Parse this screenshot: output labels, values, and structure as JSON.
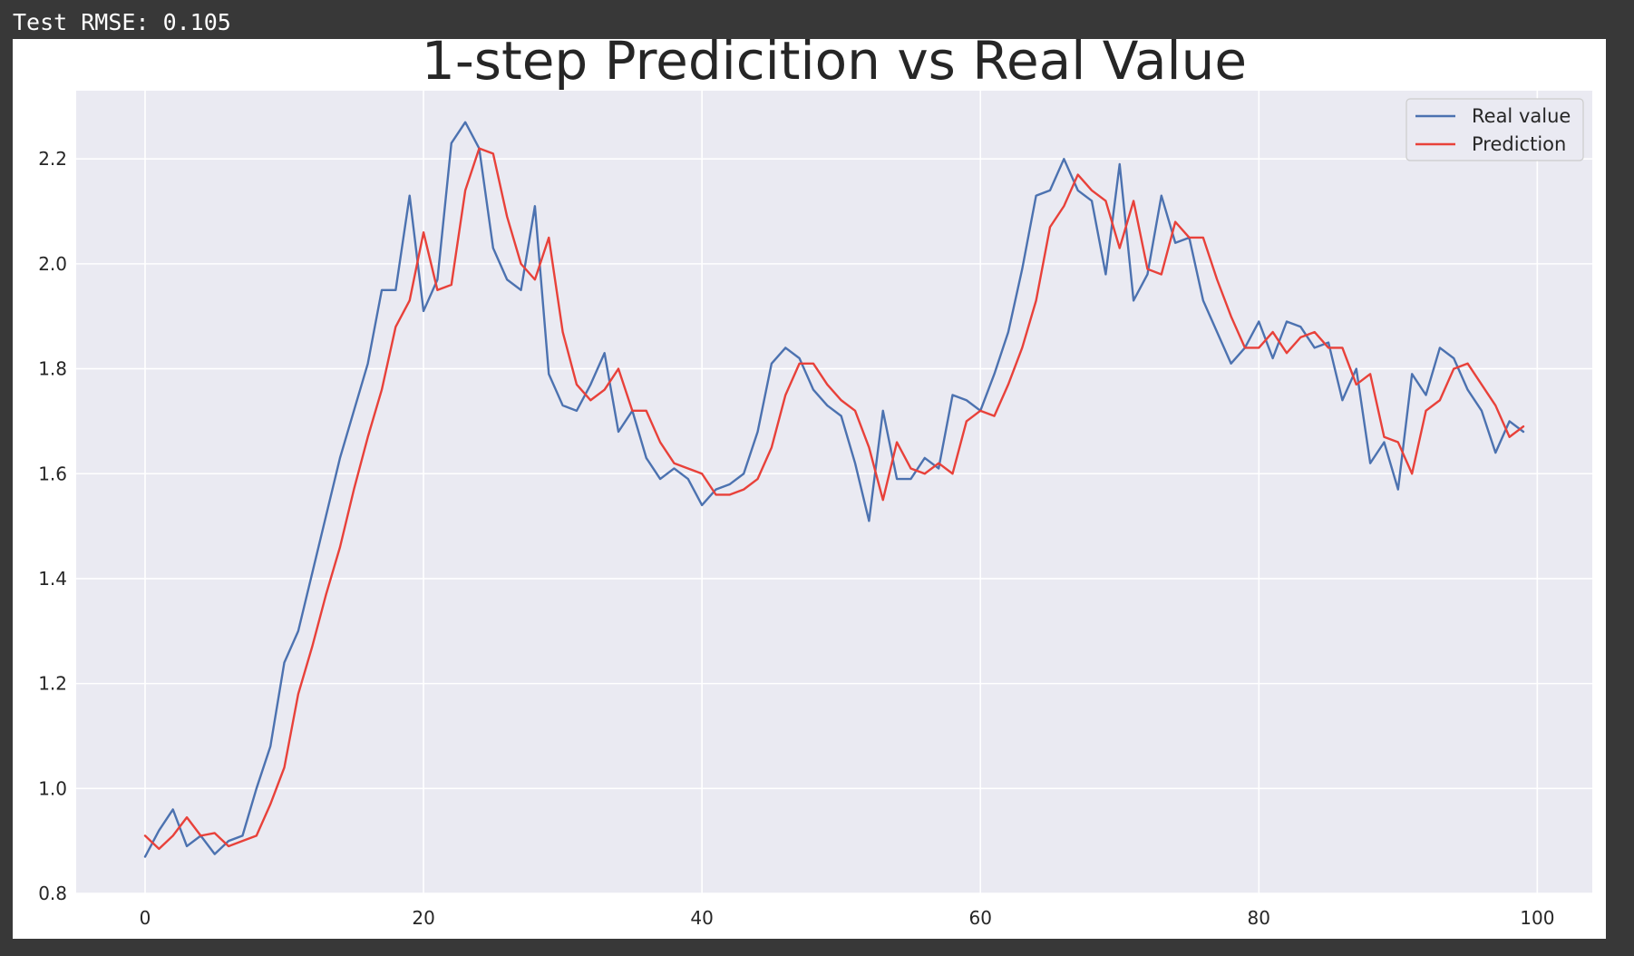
{
  "console": {
    "output_text": "Test RMSE: 0.105"
  },
  "colors": {
    "page_background": "#383838",
    "figure_background": "#ffffff",
    "axes_background": "#eaeaf2",
    "grid": "#ffffff",
    "text": "#262626"
  },
  "chart_data": {
    "type": "line",
    "title": "1-step Predicition vs Real Value",
    "xlabel": "",
    "ylabel": "",
    "xlim": [
      -4.95,
      103.95
    ],
    "ylim": [
      0.8,
      2.33
    ],
    "xticks": [
      0,
      20,
      40,
      60,
      80,
      100
    ],
    "yticks": [
      0.8,
      1.0,
      1.2,
      1.4,
      1.6,
      1.8,
      2.0,
      2.2
    ],
    "ytick_decimals": 1,
    "grid": true,
    "legend": "top-right",
    "x": [
      0,
      1,
      2,
      3,
      4,
      5,
      6,
      7,
      8,
      9,
      10,
      11,
      12,
      13,
      14,
      15,
      16,
      17,
      18,
      19,
      20,
      21,
      22,
      23,
      24,
      25,
      26,
      27,
      28,
      29,
      30,
      31,
      32,
      33,
      34,
      35,
      36,
      37,
      38,
      39,
      40,
      41,
      42,
      43,
      44,
      45,
      46,
      47,
      48,
      49,
      50,
      51,
      52,
      53,
      54,
      55,
      56,
      57,
      58,
      59,
      60,
      61,
      62,
      63,
      64,
      65,
      66,
      67,
      68,
      69,
      70,
      71,
      72,
      73,
      74,
      75,
      76,
      77,
      78,
      79,
      80,
      81,
      82,
      83,
      84,
      85,
      86,
      87,
      88,
      89,
      90,
      91,
      92,
      93,
      94,
      95,
      96,
      97,
      98,
      99
    ],
    "series": [
      {
        "name": "Real value",
        "color": "#4c72b0",
        "values": [
          0.87,
          0.92,
          0.96,
          0.89,
          0.91,
          0.875,
          0.9,
          0.91,
          1.0,
          1.08,
          1.24,
          1.3,
          1.41,
          1.52,
          1.63,
          1.72,
          1.81,
          1.95,
          1.95,
          2.13,
          1.91,
          1.97,
          2.23,
          2.27,
          2.22,
          2.03,
          1.97,
          1.95,
          2.11,
          1.79,
          1.73,
          1.72,
          1.77,
          1.83,
          1.68,
          1.72,
          1.63,
          1.59,
          1.61,
          1.59,
          1.54,
          1.57,
          1.58,
          1.6,
          1.68,
          1.81,
          1.84,
          1.82,
          1.76,
          1.73,
          1.71,
          1.62,
          1.51,
          1.72,
          1.59,
          1.59,
          1.63,
          1.61,
          1.75,
          1.74,
          1.72,
          1.79,
          1.87,
          1.99,
          2.13,
          2.14,
          2.2,
          2.14,
          2.12,
          1.98,
          2.19,
          1.93,
          1.98,
          2.13,
          2.04,
          2.05,
          1.93,
          1.87,
          1.81,
          1.84,
          1.89,
          1.82,
          1.89,
          1.88,
          1.84,
          1.85,
          1.74,
          1.8,
          1.62,
          1.66,
          1.57,
          1.79,
          1.75,
          1.84,
          1.82,
          1.76,
          1.72,
          1.64,
          1.7,
          1.68
        ]
      },
      {
        "name": "Prediction",
        "color": "#e8413a",
        "values": [
          0.91,
          0.885,
          0.91,
          0.945,
          0.91,
          0.915,
          0.89,
          0.9,
          0.91,
          0.97,
          1.04,
          1.18,
          1.27,
          1.37,
          1.46,
          1.57,
          1.67,
          1.76,
          1.88,
          1.93,
          2.06,
          1.95,
          1.96,
          2.14,
          2.22,
          2.21,
          2.09,
          2.0,
          1.97,
          2.05,
          1.87,
          1.77,
          1.74,
          1.76,
          1.8,
          1.72,
          1.72,
          1.66,
          1.62,
          1.61,
          1.6,
          1.56,
          1.56,
          1.57,
          1.59,
          1.65,
          1.75,
          1.81,
          1.81,
          1.77,
          1.74,
          1.72,
          1.65,
          1.55,
          1.66,
          1.61,
          1.6,
          1.62,
          1.6,
          1.7,
          1.72,
          1.71,
          1.77,
          1.84,
          1.93,
          2.07,
          2.11,
          2.17,
          2.14,
          2.12,
          2.03,
          2.12,
          1.99,
          1.98,
          2.08,
          2.05,
          2.05,
          1.97,
          1.9,
          1.84,
          1.84,
          1.87,
          1.83,
          1.86,
          1.87,
          1.84,
          1.84,
          1.77,
          1.79,
          1.67,
          1.66,
          1.6,
          1.72,
          1.74,
          1.8,
          1.81,
          1.77,
          1.73,
          1.67,
          1.69
        ]
      }
    ]
  }
}
